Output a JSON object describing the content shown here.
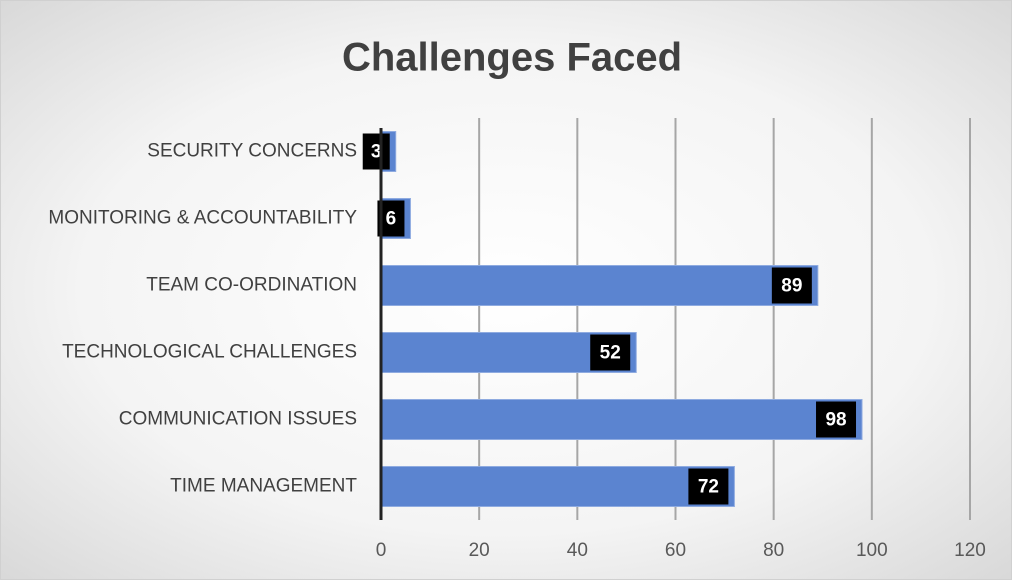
{
  "chart_data": {
    "type": "bar",
    "orientation": "horizontal",
    "title": "Challenges Faced",
    "categories": [
      "SECURITY CONCERNS",
      "MONITORING & ACCOUNTABILITY",
      "TEAM CO-ORDINATION",
      "TECHNOLOGICAL CHALLENGES",
      "COMMUNICATION ISSUES",
      "TIME MANAGEMENT"
    ],
    "values": [
      3,
      6,
      89,
      52,
      98,
      72
    ],
    "color": "#5b84d0",
    "xlim": [
      0,
      120
    ],
    "xticks": [
      0,
      20,
      40,
      60,
      80,
      100,
      120
    ],
    "grid": true
  }
}
